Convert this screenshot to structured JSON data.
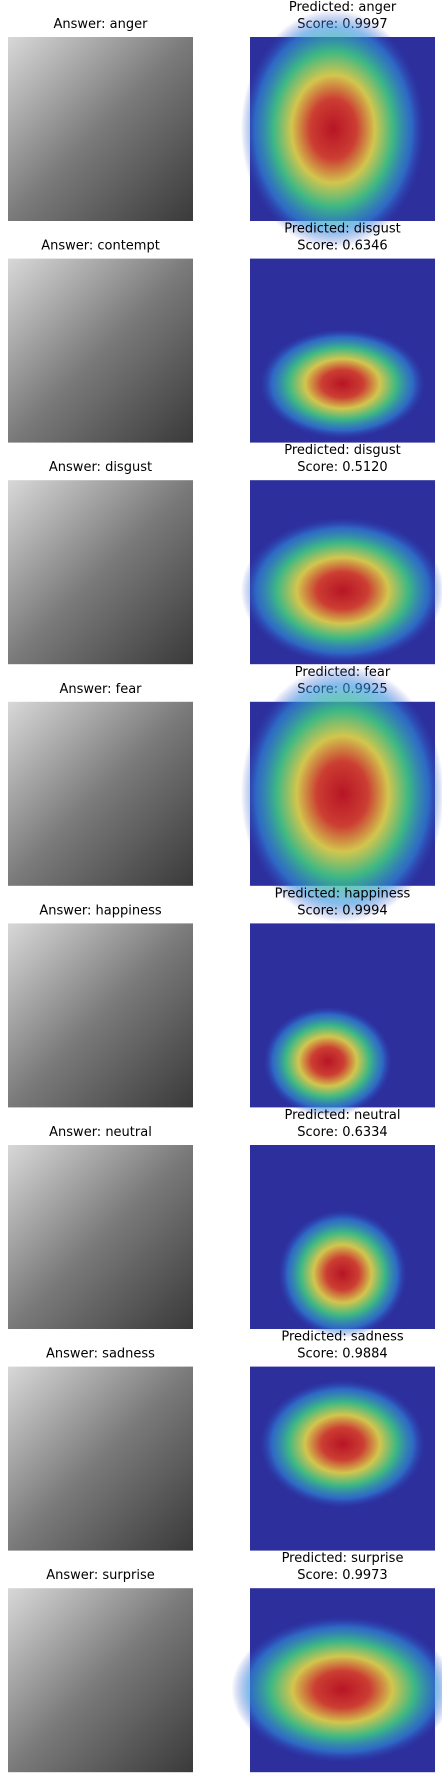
{
  "panels": [
    {
      "answer": "Answer: anger",
      "predicted": "Predicted: anger",
      "score": "Score: 0.9997"
    },
    {
      "answer": "Answer: contempt",
      "predicted": "Predicted: disgust",
      "score": "Score: 0.6346"
    },
    {
      "answer": "Answer: disgust",
      "predicted": "Predicted: disgust",
      "score": "Score: 0.5120"
    },
    {
      "answer": "Answer: fear",
      "predicted": "Predicted: fear",
      "score": "Score: 0.9925"
    },
    {
      "answer": "Answer: happiness",
      "predicted": "Predicted: happiness",
      "score": "Score: 0.9994"
    },
    {
      "answer": "Answer: neutral",
      "predicted": "Predicted: neutral",
      "score": "Score: 0.6334"
    },
    {
      "answer": "Answer: sadness",
      "predicted": "Predicted: sadness",
      "score": "Score: 0.9884"
    },
    {
      "answer": "Answer: surprise",
      "predicted": "Predicted: surprise",
      "score": "Score: 0.9973"
    }
  ]
}
